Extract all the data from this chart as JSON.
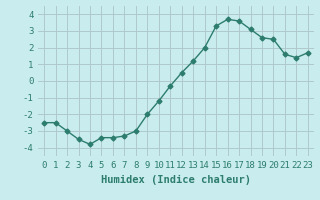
{
  "x": [
    0,
    1,
    2,
    3,
    4,
    5,
    6,
    7,
    8,
    9,
    10,
    11,
    12,
    13,
    14,
    15,
    16,
    17,
    18,
    19,
    20,
    21,
    22,
    23
  ],
  "y": [
    -2.5,
    -2.5,
    -3.0,
    -3.5,
    -3.8,
    -3.4,
    -3.4,
    -3.3,
    -3.0,
    -2.0,
    -1.2,
    -0.3,
    0.5,
    1.2,
    2.0,
    3.3,
    3.7,
    3.6,
    3.1,
    2.6,
    2.5,
    1.6,
    1.4,
    1.7
  ],
  "xlabel": "Humidex (Indice chaleur)",
  "xlim": [
    -0.5,
    23.5
  ],
  "ylim": [
    -4.5,
    4.5
  ],
  "yticks": [
    -4,
    -3,
    -2,
    -1,
    0,
    1,
    2,
    3,
    4
  ],
  "xticks": [
    0,
    1,
    2,
    3,
    4,
    5,
    6,
    7,
    8,
    9,
    10,
    11,
    12,
    13,
    14,
    15,
    16,
    17,
    18,
    19,
    20,
    21,
    22,
    23
  ],
  "line_color": "#2d7d6e",
  "marker": "D",
  "marker_size": 2.5,
  "bg_color": "#c9ecee",
  "grid_color": "#b0c8cc",
  "tick_label_fontsize": 6.5,
  "xlabel_fontsize": 7.5
}
